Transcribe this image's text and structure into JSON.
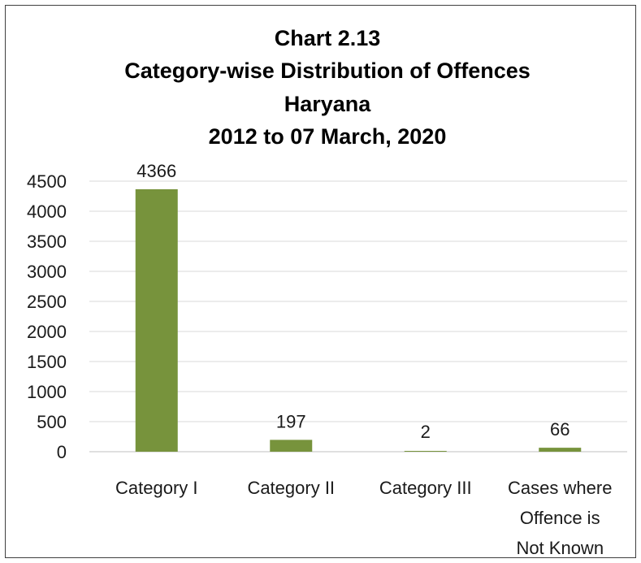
{
  "chart_data": {
    "type": "bar",
    "title_lines": [
      "Chart 2.13",
      "Category-wise Distribution of Offences",
      "Haryana",
      "2012 to 07 March, 2020"
    ],
    "categories": [
      [
        "Category I"
      ],
      [
        "Category II"
      ],
      [
        "Category III"
      ],
      [
        "Cases where",
        "Offence is",
        "Not Known"
      ]
    ],
    "values": [
      4366,
      197,
      2,
      66
    ],
    "data_labels": [
      "4366",
      "197",
      "2",
      "66"
    ],
    "y_ticks": [
      0,
      500,
      1000,
      1500,
      2000,
      2500,
      3000,
      3500,
      4000,
      4500
    ],
    "ylim": [
      0,
      4500
    ],
    "grid": true,
    "legend": "none",
    "bar_color": "#77933c",
    "grid_color": "#d9d9d9",
    "axis_color": "#bfbfbf"
  }
}
